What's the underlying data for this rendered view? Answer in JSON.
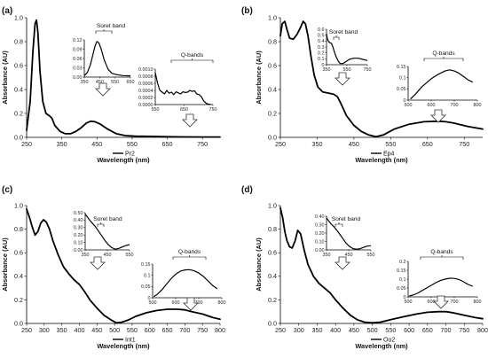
{
  "chart_data": [
    {
      "type": "line",
      "panel_label": "(a)",
      "ylabel": "Absorbance (AU)",
      "xlabel": "Wavelength (nm)",
      "series_name": "Pr2",
      "xlim": [
        250,
        800
      ],
      "ylim": [
        0,
        1.0
      ],
      "x_ticks": [
        250,
        350,
        450,
        550,
        650,
        750
      ],
      "y_ticks": [
        "0.0",
        "0.2",
        "0.4",
        "0.6",
        "0.8",
        "1.0"
      ],
      "series": [
        {
          "name": "Pr2",
          "x": [
            250,
            260,
            268,
            274,
            278,
            282,
            288,
            296,
            305,
            315,
            322,
            330,
            345,
            360,
            375,
            390,
            405,
            420,
            432,
            445,
            460,
            480,
            505,
            530,
            560,
            600,
            650,
            700,
            750,
            800
          ],
          "y": [
            0.06,
            0.3,
            0.72,
            0.95,
            0.98,
            0.88,
            0.55,
            0.3,
            0.2,
            0.18,
            0.16,
            0.1,
            0.05,
            0.03,
            0.03,
            0.05,
            0.08,
            0.12,
            0.135,
            0.13,
            0.11,
            0.07,
            0.03,
            0.015,
            0.01,
            0.008,
            0.005,
            0.004,
            0.003,
            0.003
          ]
        }
      ],
      "insets": [
        {
          "title": "Soret band",
          "xlim": [
            350,
            650
          ],
          "ylim": [
            0,
            0.12
          ],
          "x_ticks": [
            "350",
            "450",
            "550",
            "650"
          ],
          "y_ticks": [
            "0.00",
            "0.03",
            "0.06",
            "0.09",
            "0.12"
          ],
          "x": [
            350,
            370,
            390,
            405,
            420,
            432,
            445,
            460,
            480,
            505,
            530,
            560,
            600,
            650
          ],
          "y": [
            0.005,
            0.015,
            0.04,
            0.07,
            0.1,
            0.115,
            0.11,
            0.09,
            0.055,
            0.025,
            0.012,
            0.008,
            0.005,
            0.004
          ]
        },
        {
          "title": "Q-bands",
          "xlim": [
            550,
            800
          ],
          "ylim": [
            0,
            0.001
          ],
          "x_ticks": [
            "550",
            "650",
            "750"
          ],
          "y_ticks": [
            "0.0000",
            "0.0002",
            "0.0004",
            "0.0006",
            "0.0008",
            "0.0010"
          ],
          "x": [
            550,
            560,
            570,
            580,
            590,
            600,
            610,
            620,
            630,
            640,
            650,
            660,
            670,
            680,
            690,
            700,
            710,
            720,
            730,
            740,
            750,
            760,
            770,
            780,
            790
          ],
          "y": [
            0.0009,
            0.0006,
            0.0004,
            0.00035,
            0.0003,
            0.0004,
            0.00032,
            0.00035,
            0.00028,
            0.00036,
            0.00033,
            0.0003,
            0.00036,
            0.00034,
            0.00035,
            0.0004,
            0.00037,
            0.00039,
            0.0003,
            0.00028,
            0.00022,
            0.0001,
            4e-05,
            1e-05,
            1e-05
          ]
        }
      ]
    },
    {
      "type": "line",
      "panel_label": "(b)",
      "ylabel": "Absorbance (AU)",
      "xlabel": "Wavelength (nm)",
      "series_name": "Ep4",
      "xlim": [
        250,
        800
      ],
      "ylim": [
        0,
        1.0
      ],
      "x_ticks": [
        250,
        350,
        450,
        550,
        650,
        750
      ],
      "y_ticks": [
        "0.0",
        "0.2",
        "0.4",
        "0.6",
        "0.8",
        "1.0"
      ],
      "series": [
        {
          "name": "Ep4",
          "x": [
            250,
            255,
            262,
            268,
            275,
            285,
            295,
            305,
            312,
            318,
            325,
            333,
            342,
            352,
            365,
            380,
            395,
            405,
            415,
            430,
            450,
            470,
            490,
            510,
            530,
            560,
            600,
            640,
            680,
            700,
            720,
            760,
            800
          ],
          "y": [
            0.85,
            0.95,
            0.97,
            0.9,
            0.83,
            0.82,
            0.86,
            0.92,
            0.97,
            0.95,
            0.85,
            0.68,
            0.52,
            0.42,
            0.38,
            0.37,
            0.36,
            0.34,
            0.28,
            0.18,
            0.1,
            0.05,
            0.02,
            0.005,
            0.02,
            0.07,
            0.11,
            0.13,
            0.135,
            0.13,
            0.12,
            0.09,
            0.07
          ]
        }
      ],
      "insets": [
        {
          "title": "Soret band",
          "xlim": [
            350,
            800
          ],
          "ylim": [
            0,
            0.6
          ],
          "x_ticks": [
            "350",
            "550",
            "750"
          ],
          "y_ticks": [
            "0",
            "0.1",
            "0.2",
            "0.3",
            "0.4",
            "0.5",
            "0.6"
          ],
          "x": [
            350,
            360,
            370,
            380,
            390,
            405,
            420,
            440,
            460,
            480,
            500,
            530,
            560,
            600,
            650,
            700,
            750,
            800
          ],
          "y": [
            0.52,
            0.44,
            0.4,
            0.38,
            0.37,
            0.36,
            0.3,
            0.2,
            0.12,
            0.06,
            0.02,
            0.02,
            0.05,
            0.09,
            0.11,
            0.11,
            0.09,
            0.07
          ]
        },
        {
          "title": "Q-bands",
          "xlim": [
            500,
            800
          ],
          "ylim": [
            0,
            0.15
          ],
          "x_ticks": [
            "500",
            "600",
            "700",
            "800"
          ],
          "y_ticks": [
            "0",
            "0.05",
            "0.1",
            "0.15"
          ],
          "x": [
            510,
            530,
            560,
            600,
            630,
            660,
            680,
            700,
            720,
            740,
            760,
            780
          ],
          "y": [
            0.005,
            0.025,
            0.06,
            0.095,
            0.115,
            0.13,
            0.135,
            0.13,
            0.12,
            0.105,
            0.09,
            0.08
          ]
        }
      ]
    },
    {
      "type": "line",
      "panel_label": "(c)",
      "ylabel": "Absorbance (AU)",
      "xlabel": "Wavelength (nm)",
      "series_name": "Int1",
      "xlim": [
        250,
        800
      ],
      "ylim": [
        0,
        1.0
      ],
      "x_ticks": [
        250,
        300,
        350,
        400,
        450,
        500,
        550,
        600,
        650,
        700,
        750,
        800
      ],
      "y_ticks": [
        "0.0",
        "0.2",
        "0.4",
        "0.6",
        "0.8",
        "1.0"
      ],
      "series": [
        {
          "name": "Int1",
          "x": [
            250,
            258,
            266,
            274,
            282,
            290,
            298,
            306,
            315,
            325,
            340,
            355,
            370,
            385,
            400,
            415,
            430,
            450,
            470,
            490,
            505,
            520,
            540,
            560,
            590,
            620,
            650,
            680,
            700,
            720,
            750,
            780,
            800
          ],
          "y": [
            0.97,
            0.9,
            0.82,
            0.75,
            0.78,
            0.85,
            0.88,
            0.86,
            0.8,
            0.7,
            0.58,
            0.48,
            0.42,
            0.37,
            0.33,
            0.27,
            0.2,
            0.13,
            0.07,
            0.03,
            0.005,
            0.01,
            0.03,
            0.06,
            0.09,
            0.11,
            0.12,
            0.12,
            0.115,
            0.1,
            0.08,
            0.05,
            0.035
          ]
        }
      ],
      "insets": [
        {
          "title": "Soret band",
          "xlim": [
            350,
            600
          ],
          "ylim": [
            0,
            0.5
          ],
          "x_ticks": [
            "350",
            "450",
            "550"
          ],
          "y_ticks": [
            "0.00",
            "0.10",
            "0.20",
            "0.30",
            "0.40",
            "0.50"
          ],
          "x": [
            350,
            360,
            375,
            390,
            405,
            420,
            440,
            460,
            480,
            500,
            520,
            540,
            560,
            580,
            600
          ],
          "y": [
            0.48,
            0.45,
            0.4,
            0.36,
            0.32,
            0.27,
            0.2,
            0.13,
            0.07,
            0.03,
            0.01,
            0.02,
            0.04,
            0.06,
            0.07
          ]
        },
        {
          "title": "Q-bands",
          "xlim": [
            500,
            800
          ],
          "ylim": [
            0,
            0.15
          ],
          "x_ticks": [
            "500",
            "600",
            "700",
            "800"
          ],
          "y_ticks": [
            "0",
            "0.05",
            "0.1",
            "0.15"
          ],
          "x": [
            505,
            520,
            540,
            560,
            580,
            600,
            620,
            640,
            660,
            680,
            700,
            720,
            740,
            760,
            780
          ],
          "y": [
            0.005,
            0.015,
            0.035,
            0.06,
            0.085,
            0.105,
            0.118,
            0.124,
            0.125,
            0.12,
            0.11,
            0.095,
            0.075,
            0.055,
            0.04
          ]
        }
      ]
    },
    {
      "type": "line",
      "panel_label": "(d)",
      "ylabel": "Absorbance (AU)",
      "xlabel": "Wavelength (nm)",
      "series_name": "Oo2",
      "xlim": [
        250,
        800
      ],
      "ylim": [
        0,
        1.0
      ],
      "x_ticks": [
        250,
        300,
        350,
        400,
        450,
        500,
        550,
        600,
        650,
        700,
        750,
        800
      ],
      "y_ticks": [
        "0.0",
        "0.2",
        "0.4",
        "0.6",
        "0.8",
        "1.0"
      ],
      "series": [
        {
          "name": "Oo2",
          "x": [
            250,
            256,
            262,
            268,
            275,
            282,
            290,
            297,
            305,
            315,
            325,
            340,
            355,
            370,
            385,
            400,
            420,
            440,
            460,
            480,
            500,
            520,
            540,
            560,
            590,
            620,
            650,
            680,
            700,
            720,
            750,
            780,
            800
          ],
          "y": [
            0.98,
            0.9,
            0.78,
            0.7,
            0.65,
            0.64,
            0.7,
            0.79,
            0.76,
            0.62,
            0.5,
            0.4,
            0.34,
            0.3,
            0.26,
            0.2,
            0.13,
            0.07,
            0.03,
            0.01,
            0.005,
            0.01,
            0.025,
            0.04,
            0.06,
            0.08,
            0.095,
            0.1,
            0.1,
            0.09,
            0.07,
            0.05,
            0.04
          ]
        }
      ],
      "insets": [
        {
          "title": "Soret band",
          "xlim": [
            350,
            600
          ],
          "ylim": [
            0,
            0.4
          ],
          "x_ticks": [
            "350",
            "450",
            "550"
          ],
          "y_ticks": [
            "0.00",
            "0.10",
            "0.20",
            "0.30",
            "0.40"
          ],
          "x": [
            350,
            360,
            375,
            390,
            405,
            420,
            440,
            460,
            480,
            500,
            520,
            540,
            560,
            580,
            600
          ],
          "y": [
            0.38,
            0.35,
            0.31,
            0.28,
            0.24,
            0.2,
            0.14,
            0.08,
            0.04,
            0.015,
            0.008,
            0.015,
            0.03,
            0.045,
            0.05
          ]
        },
        {
          "title": "Q-bands",
          "xlim": [
            500,
            800
          ],
          "ylim": [
            0,
            0.2
          ],
          "x_ticks": [
            "500",
            "600",
            "700",
            "800"
          ],
          "y_ticks": [
            "0",
            "0.05",
            "0.1",
            "0.15",
            "0.2"
          ],
          "x": [
            505,
            520,
            540,
            560,
            580,
            600,
            620,
            640,
            660,
            680,
            700,
            720,
            740,
            760,
            780
          ],
          "y": [
            0.005,
            0.01,
            0.02,
            0.035,
            0.05,
            0.065,
            0.08,
            0.092,
            0.1,
            0.105,
            0.104,
            0.098,
            0.085,
            0.07,
            0.06
          ]
        }
      ]
    }
  ]
}
